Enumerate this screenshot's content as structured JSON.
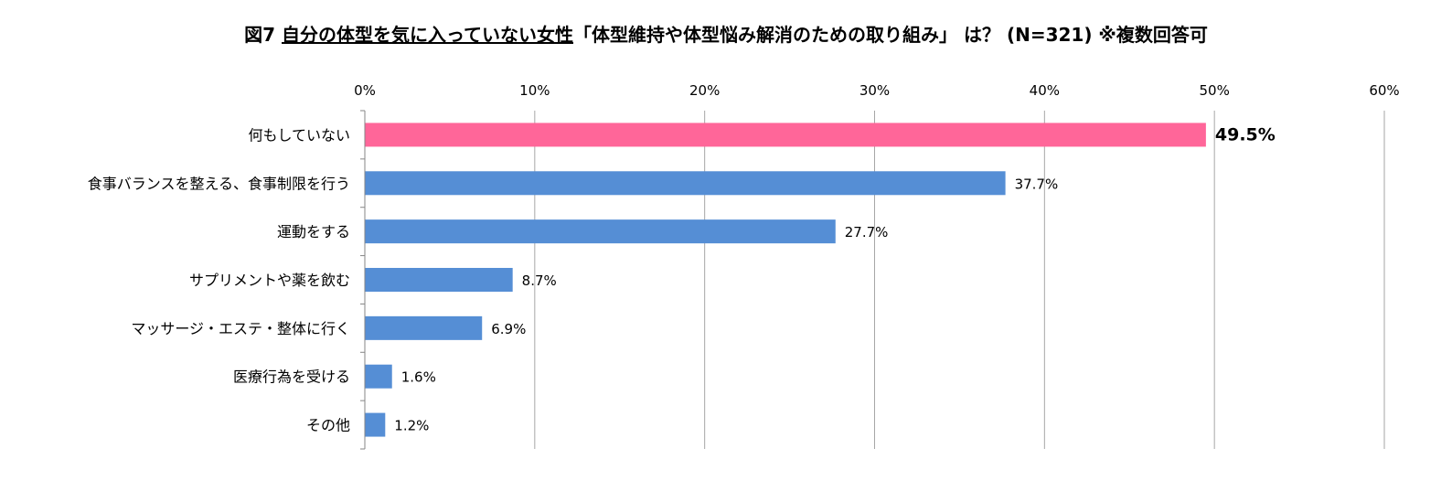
{
  "title": {
    "prefix": "図7",
    "underlined": "自分の体型を気に入っていない女性",
    "rest": "「体型維持や体型悩み解消のための取り組み」 は？ (N=321) ※複数回答可"
  },
  "chart_data": {
    "type": "bar",
    "orientation": "horizontal",
    "categories": [
      "何もしていない",
      "食事バランスを整える、食事制限を行う",
      "運動をする",
      "サプリメントや薬を飲む",
      "マッサージ・エステ・整体に行く",
      "医療行為を受ける",
      "その他"
    ],
    "values": [
      49.5,
      37.7,
      27.7,
      8.7,
      6.9,
      1.6,
      1.2
    ],
    "value_labels": [
      "49.5%",
      "37.7%",
      "27.7%",
      "8.7%",
      "6.9%",
      "1.6%",
      "1.2%"
    ],
    "highlight_index": 0,
    "x_ticks": [
      0,
      10,
      20,
      30,
      40,
      50,
      60
    ],
    "x_tick_labels": [
      "0%",
      "10%",
      "20%",
      "30%",
      "40%",
      "50%",
      "60%"
    ],
    "xlim": [
      0,
      60
    ],
    "x_axis_position": "top",
    "grid": true,
    "legend": "none",
    "colors": {
      "highlight": "#FF6699",
      "bar": "#558ED5",
      "grid": "#A6A6A6",
      "axis": "#868686",
      "text": "#000000"
    }
  }
}
